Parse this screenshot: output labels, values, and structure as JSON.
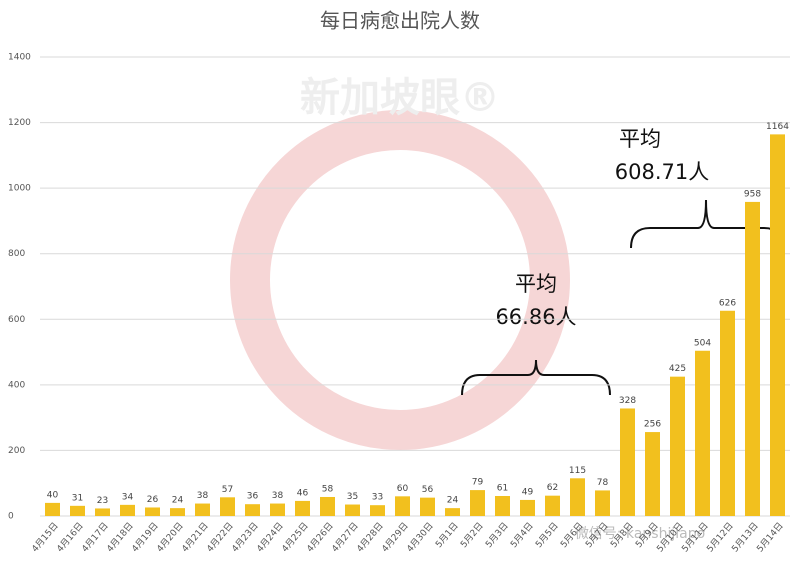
{
  "chart_data": {
    "type": "bar",
    "title": "每日病愈出院人数",
    "categories": [
      "4月15日",
      "4月16日",
      "4月17日",
      "4月18日",
      "4月19日",
      "4月20日",
      "4月21日",
      "4月22日",
      "4月23日",
      "4月24日",
      "4月25日",
      "4月26日",
      "4月27日",
      "4月28日",
      "4月29日",
      "4月30日",
      "5月1日",
      "5月2日",
      "5月3日",
      "5月4日",
      "5月5日",
      "5月6日",
      "5月7日",
      "5月8日",
      "5月9日",
      "5月10日",
      "5月11日",
      "5月12日",
      "5月13日",
      "5月14日"
    ],
    "values": [
      40,
      31,
      23,
      34,
      26,
      24,
      38,
      57,
      36,
      38,
      46,
      58,
      35,
      33,
      60,
      56,
      24,
      79,
      61,
      49,
      62,
      115,
      78,
      328,
      256,
      425,
      504,
      626,
      958,
      1164
    ],
    "color": "#f2c01e",
    "ylim": [
      0,
      1400
    ],
    "yticks": [
      0,
      200,
      400,
      600,
      800,
      1000,
      1200,
      1400
    ],
    "grid": true,
    "annotations": [
      {
        "lines": [
          "平均",
          "66.86人"
        ]
      },
      {
        "lines": [
          "平均",
          "608.71人"
        ]
      }
    ],
    "watermark": "新加坡眼®",
    "watermark_id": "微信号: kanshijiapo"
  }
}
